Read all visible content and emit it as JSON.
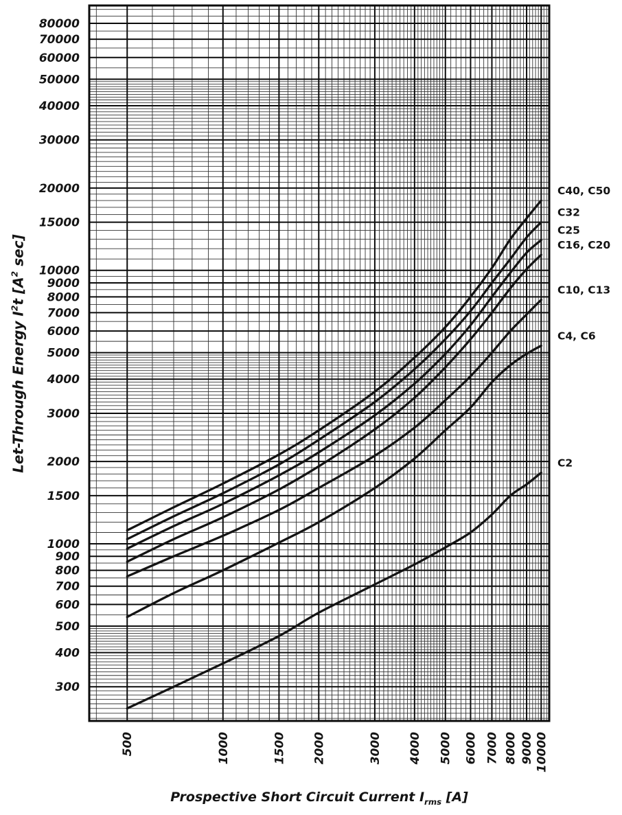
{
  "theme": {
    "background": "#ffffff",
    "ink": "#141414",
    "grid_minor": "#333333",
    "grid_major": "#0b0b0b"
  },
  "labels": {
    "ylabel_prefix": "Let-Through Energy I",
    "ylabel_sup": "2",
    "ylabel_mid": "t [A",
    "ylabel_suffix": " sec]",
    "xlabel_prefix": "Prospective Short Circuit Current I",
    "xlabel_sub": "rms",
    "xlabel_suffix": " [A]"
  },
  "chart_data": {
    "type": "line",
    "title": "",
    "xlabel": "Prospective Short Circuit Current Irms [A]",
    "ylabel": "Let-Through Energy I²t [A² sec]",
    "x_scale": "log",
    "y_scale": "log",
    "xlim": [
      380,
      10600
    ],
    "ylim": [
      225,
      93000
    ],
    "grid": "log-log graph paper, major and minor gridlines",
    "legend_position": "curve labels at right edge of plot",
    "x_ticks": [
      500,
      1000,
      1500,
      2000,
      3000,
      4000,
      5000,
      6000,
      7000,
      8000,
      9000,
      10000
    ],
    "y_ticks": [
      300,
      400,
      500,
      600,
      700,
      800,
      900,
      1000,
      1500,
      2000,
      3000,
      4000,
      5000,
      6000,
      7000,
      8000,
      9000,
      10000,
      15000,
      20000,
      30000,
      40000,
      50000,
      60000,
      70000,
      80000
    ],
    "x": [
      500,
      700,
      1000,
      1500,
      2000,
      3000,
      4000,
      5000,
      6000,
      7000,
      8000,
      9000,
      10000
    ],
    "series": [
      {
        "name": "C40, C50",
        "values": [
          1120,
          1360,
          1660,
          2120,
          2600,
          3600,
          4800,
          6200,
          8000,
          10200,
          13000,
          15500,
          18000
        ]
      },
      {
        "name": "C32",
        "values": [
          1040,
          1260,
          1530,
          1950,
          2400,
          3300,
          4350,
          5600,
          7100,
          9000,
          11000,
          13200,
          15000
        ]
      },
      {
        "name": "C25",
        "values": [
          960,
          1160,
          1400,
          1780,
          2160,
          2950,
          3850,
          4950,
          6300,
          8000,
          9800,
          11600,
          12900
        ]
      },
      {
        "name": "C16, C20",
        "values": [
          860,
          1040,
          1250,
          1580,
          1920,
          2620,
          3420,
          4420,
          5600,
          7000,
          8600,
          10100,
          11400
        ]
      },
      {
        "name": "C10, C13",
        "values": [
          760,
          900,
          1070,
          1330,
          1600,
          2100,
          2660,
          3350,
          4100,
          5000,
          6000,
          6900,
          7800
        ]
      },
      {
        "name": "C4, C6",
        "values": [
          540,
          660,
          800,
          1010,
          1200,
          1600,
          2050,
          2600,
          3150,
          3900,
          4500,
          4950,
          5300
        ]
      },
      {
        "name": "C2",
        "values": [
          250,
          300,
          365,
          460,
          560,
          710,
          840,
          970,
          1100,
          1280,
          1500,
          1650,
          1820
        ]
      }
    ]
  }
}
